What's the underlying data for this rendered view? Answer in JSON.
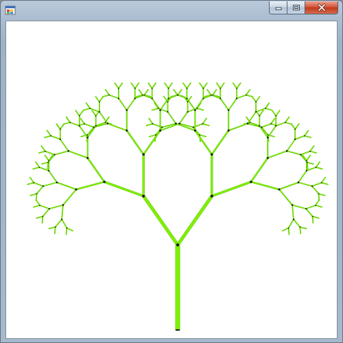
{
  "window": {
    "title": "",
    "app_icon": "windows-forms-app-icon",
    "caption_buttons": {
      "minimize": "minimize-icon",
      "maximize": "maximize-icon",
      "close": "close-icon"
    }
  },
  "canvas": {
    "content": "fractal-binary-tree",
    "depth": 7,
    "branch_angle_degrees": 35,
    "length_ratio": 0.7,
    "colors": {
      "branch": "#7ff000",
      "branch_edge": "#5ec400",
      "node": "#1a1a1a",
      "background": "#ffffff"
    }
  }
}
